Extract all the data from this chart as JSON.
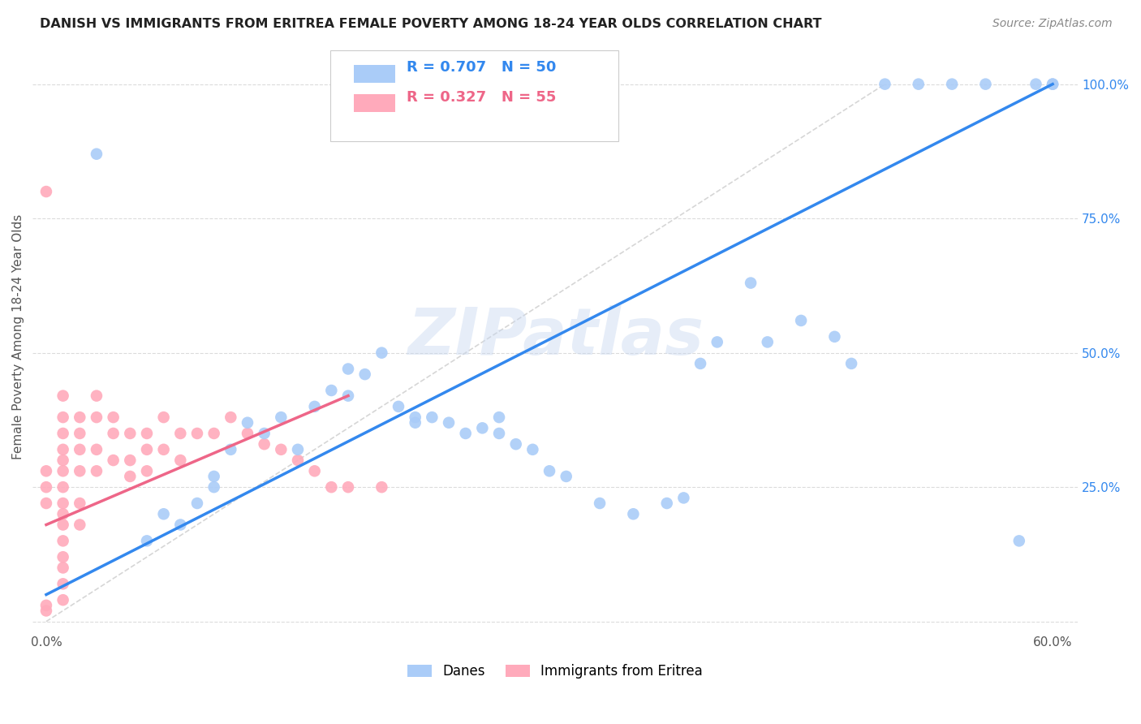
{
  "title": "DANISH VS IMMIGRANTS FROM ERITREA FEMALE POVERTY AMONG 18-24 YEAR OLDS CORRELATION CHART",
  "source": "Source: ZipAtlas.com",
  "ylabel": "Female Poverty Among 18-24 Year Olds",
  "xlim": [
    0.0,
    0.6
  ],
  "ylim": [
    0.0,
    1.05
  ],
  "xticks": [
    0.0,
    0.1,
    0.2,
    0.3,
    0.4,
    0.5,
    0.6
  ],
  "xticklabels": [
    "0.0%",
    "",
    "",
    "",
    "",
    "",
    "60.0%"
  ],
  "yticks": [
    0.0,
    0.25,
    0.5,
    0.75,
    1.0
  ],
  "yticklabels_right": [
    "",
    "25.0%",
    "50.0%",
    "75.0%",
    "100.0%"
  ],
  "blue_color": "#aaccf8",
  "pink_color": "#ffaabb",
  "blue_line_color": "#3388ee",
  "pink_line_color": "#ee6688",
  "ref_line_color": "#cccccc",
  "legend_R_blue": "0.707",
  "legend_N_blue": "50",
  "legend_R_pink": "0.327",
  "legend_N_pink": "55",
  "legend_label_blue": "Danes",
  "legend_label_pink": "Immigrants from Eritrea",
  "watermark": "ZIPatlas",
  "blue_x": [
    0.03,
    0.06,
    0.07,
    0.08,
    0.09,
    0.1,
    0.1,
    0.11,
    0.12,
    0.13,
    0.14,
    0.15,
    0.16,
    0.17,
    0.18,
    0.18,
    0.19,
    0.2,
    0.21,
    0.22,
    0.22,
    0.23,
    0.24,
    0.25,
    0.26,
    0.27,
    0.27,
    0.28,
    0.29,
    0.3,
    0.31,
    0.33,
    0.35,
    0.37,
    0.38,
    0.39,
    0.4,
    0.42,
    0.43,
    0.45,
    0.47,
    0.48,
    0.5,
    0.52,
    0.54,
    0.56,
    0.58,
    0.59,
    0.6,
    0.6
  ],
  "blue_y": [
    0.87,
    0.15,
    0.2,
    0.18,
    0.22,
    0.27,
    0.25,
    0.32,
    0.37,
    0.35,
    0.38,
    0.32,
    0.4,
    0.43,
    0.42,
    0.47,
    0.46,
    0.5,
    0.4,
    0.37,
    0.38,
    0.38,
    0.37,
    0.35,
    0.36,
    0.35,
    0.38,
    0.33,
    0.32,
    0.28,
    0.27,
    0.22,
    0.2,
    0.22,
    0.23,
    0.48,
    0.52,
    0.63,
    0.52,
    0.56,
    0.53,
    0.48,
    1.0,
    1.0,
    1.0,
    1.0,
    0.15,
    1.0,
    1.0,
    1.0
  ],
  "pink_x": [
    0.0,
    0.0,
    0.0,
    0.0,
    0.0,
    0.01,
    0.01,
    0.01,
    0.01,
    0.01,
    0.01,
    0.01,
    0.01,
    0.01,
    0.01,
    0.01,
    0.01,
    0.01,
    0.01,
    0.01,
    0.02,
    0.02,
    0.02,
    0.02,
    0.02,
    0.02,
    0.03,
    0.03,
    0.03,
    0.03,
    0.04,
    0.04,
    0.04,
    0.05,
    0.05,
    0.05,
    0.06,
    0.06,
    0.06,
    0.07,
    0.07,
    0.08,
    0.08,
    0.09,
    0.1,
    0.11,
    0.12,
    0.13,
    0.14,
    0.15,
    0.16,
    0.17,
    0.18,
    0.2,
    0.0
  ],
  "pink_y": [
    0.8,
    0.28,
    0.25,
    0.22,
    0.02,
    0.42,
    0.38,
    0.35,
    0.32,
    0.3,
    0.28,
    0.25,
    0.22,
    0.2,
    0.18,
    0.15,
    0.12,
    0.1,
    0.07,
    0.04,
    0.38,
    0.35,
    0.32,
    0.28,
    0.22,
    0.18,
    0.42,
    0.38,
    0.32,
    0.28,
    0.38,
    0.35,
    0.3,
    0.35,
    0.3,
    0.27,
    0.35,
    0.32,
    0.28,
    0.38,
    0.32,
    0.35,
    0.3,
    0.35,
    0.35,
    0.38,
    0.35,
    0.33,
    0.32,
    0.3,
    0.28,
    0.25,
    0.25,
    0.25,
    0.03
  ],
  "background_color": "#ffffff",
  "grid_color": "#d8d8d8"
}
